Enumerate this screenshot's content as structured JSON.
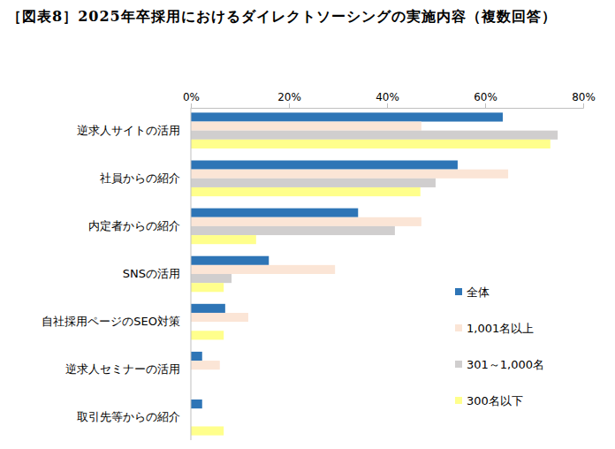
{
  "chart_data": {
    "type": "bar",
    "orientation": "horizontal",
    "title": "［図表8］2025年卒採用におけるダイレクトソーシングの実施内容（複数回答）",
    "categories": [
      "逆求人サイトの活用",
      "社員からの紹介",
      "内定者からの紹介",
      "SNSの活用",
      "自社採用ページのSEO対策",
      "逆求人セミナーの活用",
      "取引先等からの紹介"
    ],
    "series": [
      {
        "name": "全体",
        "color": "#2e75b6",
        "values": [
          63.6,
          54.4,
          34.1,
          15.9,
          7.0,
          2.3,
          2.3
        ]
      },
      {
        "name": "1,001名以上",
        "color": "#fbe5d6",
        "values": [
          47.0,
          64.7,
          47.0,
          29.4,
          11.7,
          5.9,
          0
        ]
      },
      {
        "name": "301～1,000名",
        "color": "#d0cece",
        "values": [
          74.8,
          49.9,
          41.6,
          8.3,
          0,
          0,
          0
        ]
      },
      {
        "name": "300名以下",
        "color": "#ffff8c",
        "values": [
          73.3,
          46.8,
          13.3,
          6.7,
          6.7,
          0,
          6.7
        ]
      }
    ],
    "xlim": [
      0,
      80
    ],
    "xticks": [
      {
        "value": 0,
        "label": "0%"
      },
      {
        "value": 20,
        "label": "20%"
      },
      {
        "value": 40,
        "label": "40%"
      },
      {
        "value": 60,
        "label": "60%"
      },
      {
        "value": 80,
        "label": "80%"
      }
    ],
    "grid": false,
    "legend": "right"
  }
}
